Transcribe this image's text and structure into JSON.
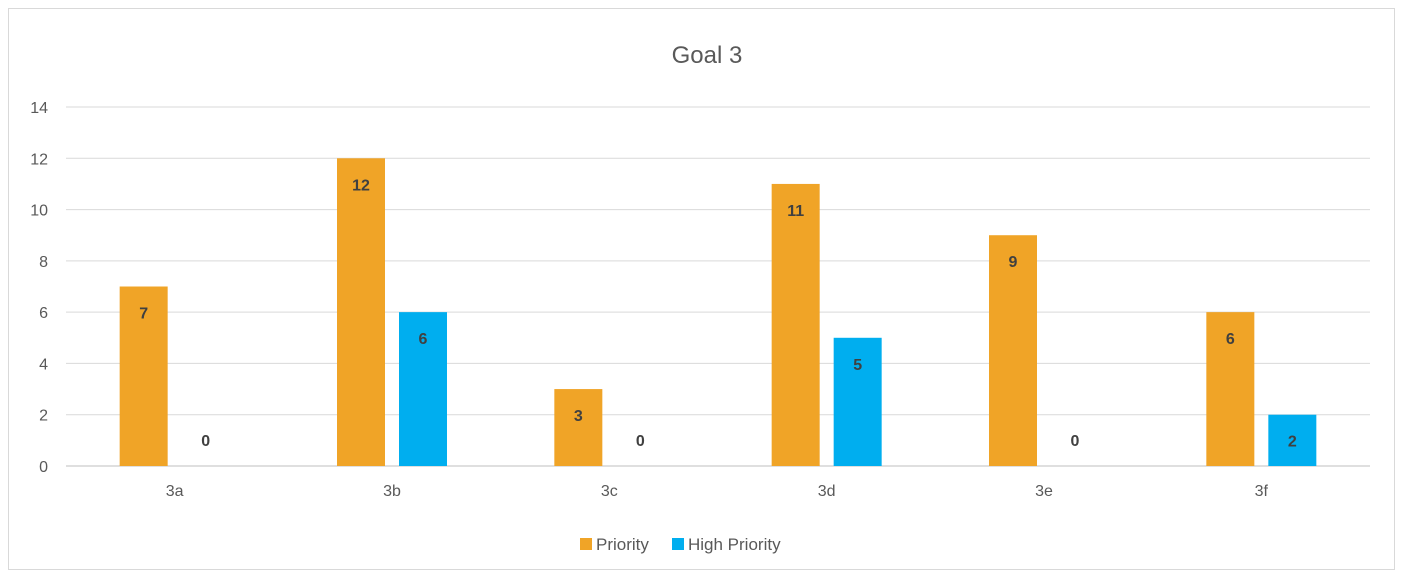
{
  "chart_data": {
    "type": "bar",
    "title": "Goal 3",
    "xlabel": "",
    "ylabel": "",
    "categories": [
      "3a",
      "3b",
      "3c",
      "3d",
      "3e",
      "3f"
    ],
    "series": [
      {
        "name": "Priority",
        "values": [
          7,
          12,
          3,
          11,
          9,
          6
        ],
        "color": "#F0A427"
      },
      {
        "name": "High Priority",
        "values": [
          0,
          6,
          0,
          5,
          0,
          2
        ],
        "color": "#00AEEF"
      }
    ],
    "ylim": [
      0,
      14
    ],
    "yticks": [
      0,
      2,
      4,
      6,
      8,
      10,
      12,
      14
    ],
    "grid": true,
    "legend": "bottom",
    "gridColor": "#d9d9d9",
    "axisColor": "#bfbfbf"
  }
}
